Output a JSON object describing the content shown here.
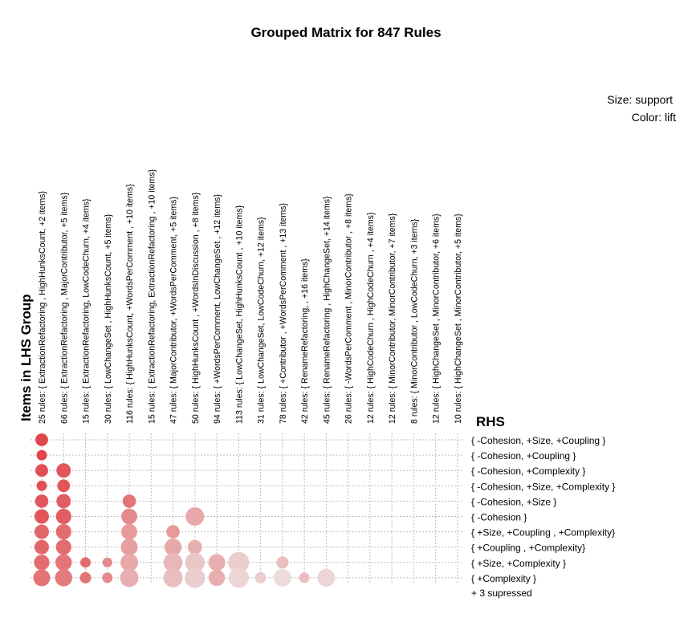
{
  "chart_data": {
    "type": "scatter",
    "title": "Grouped Matrix for 847 Rules",
    "legend": {
      "size": "Size: support",
      "color": "Color: lift",
      "placement": "top-right"
    },
    "xlabel": "Items in LHS Group",
    "ylabel": "RHS",
    "lhs_groups": [
      "25 rules: { ExtractionRefactoring ,  HighHunksCount, +2 items}",
      "66 rules: { ExtractionRefactoring ,  MajorContributor, +5 items}",
      "15 rules: { ExtractionRefactoring,  LowCodeChurn, +4 items}",
      "30 rules: { LowChangeSet ,  HighHunksCount, +5 items}",
      "116 rules: { HighHunksCount,  +WordsPerComment , +10 items}",
      "15 rules: { ExtractionRefactoring,  ExtractionRefactoring , +10 items}",
      "47 rules: { MajorContributor,  +WordsPerComment, +5 items}",
      "50 rules: { HighHunksCount ,  +WordsInDiscussion , +8 items}",
      "94 rules: { +WordsPerComment,  LowChangeSet , +12 items}",
      "113 rules: { LowChangeSet,  HighHunksCount , +10 items}",
      "31 rules: { LowChangeSet,  LowCodeChurn, +12 items}",
      "78 rules: { +Contributor ,  +WordsPerComment , +13 items}",
      "42 rules: { RenameRefactoring,  , +16 items}",
      "45 rules: { RenameRefactoring ,  HighChangeSet, +14 items}",
      "26 rules: { -WordsPerComment ,  MinorContributor , +8 items}",
      "12 rules: { HighCodeChurn ,  HighCodeChurn , +4 items}",
      "12 rules: { MinorContributor,  MinorContributor, +7 items}",
      "8 rules: { MinorContributor ,  LowCodeChurn, +3 items}",
      "12 rules: { HighChangeSet ,  MinorContributor, +6 items}",
      "10 rules: { HighChangeSet ,  MinorContributor, +5 items}"
    ],
    "rhs_items": [
      "{ -Cohesion, +Size, +Coupling }",
      "{ -Cohesion, +Coupling }",
      "{ -Cohesion, +Complexity }",
      "{ -Cohesion, +Size, +Complexity }",
      "{ -Cohesion, +Size }",
      "{ -Cohesion }",
      "{ +Size, +Coupling , +Complexity}",
      "{ +Coupling , +Complexity}",
      "{ +Size, +Complexity }",
      "{ +Complexity }"
    ],
    "suppressed_label": "+ 3 supressed",
    "size_encoding": "support",
    "color_encoding": "lift",
    "color_scale": {
      "high": "#e0474c",
      "low": "#ecdcdc"
    },
    "grid": true,
    "points": [
      {
        "x": 0,
        "y": 0,
        "support": 0.3,
        "lift": 1.0
      },
      {
        "x": 0,
        "y": 1,
        "support": 0.15,
        "lift": 1.0
      },
      {
        "x": 0,
        "y": 2,
        "support": 0.3,
        "lift": 0.95
      },
      {
        "x": 0,
        "y": 3,
        "support": 0.15,
        "lift": 0.95
      },
      {
        "x": 0,
        "y": 4,
        "support": 0.35,
        "lift": 0.9
      },
      {
        "x": 0,
        "y": 5,
        "support": 0.45,
        "lift": 0.9
      },
      {
        "x": 0,
        "y": 6,
        "support": 0.45,
        "lift": 0.8
      },
      {
        "x": 0,
        "y": 7,
        "support": 0.45,
        "lift": 0.8
      },
      {
        "x": 0,
        "y": 8,
        "support": 0.55,
        "lift": 0.75
      },
      {
        "x": 0,
        "y": 9,
        "support": 0.7,
        "lift": 0.7
      },
      {
        "x": 1,
        "y": 2,
        "support": 0.45,
        "lift": 0.9
      },
      {
        "x": 1,
        "y": 3,
        "support": 0.3,
        "lift": 0.9
      },
      {
        "x": 1,
        "y": 4,
        "support": 0.45,
        "lift": 0.85
      },
      {
        "x": 1,
        "y": 5,
        "support": 0.55,
        "lift": 0.85
      },
      {
        "x": 1,
        "y": 6,
        "support": 0.55,
        "lift": 0.75
      },
      {
        "x": 1,
        "y": 7,
        "support": 0.55,
        "lift": 0.75
      },
      {
        "x": 1,
        "y": 8,
        "support": 0.65,
        "lift": 0.7
      },
      {
        "x": 1,
        "y": 9,
        "support": 0.75,
        "lift": 0.65
      },
      {
        "x": 2,
        "y": 8,
        "support": 0.15,
        "lift": 0.75
      },
      {
        "x": 2,
        "y": 9,
        "support": 0.2,
        "lift": 0.7
      },
      {
        "x": 3,
        "y": 8,
        "support": 0.12,
        "lift": 0.55
      },
      {
        "x": 3,
        "y": 9,
        "support": 0.15,
        "lift": 0.55
      },
      {
        "x": 4,
        "y": 4,
        "support": 0.35,
        "lift": 0.7
      },
      {
        "x": 4,
        "y": 5,
        "support": 0.6,
        "lift": 0.55
      },
      {
        "x": 4,
        "y": 6,
        "support": 0.6,
        "lift": 0.45
      },
      {
        "x": 4,
        "y": 7,
        "support": 0.7,
        "lift": 0.4
      },
      {
        "x": 4,
        "y": 8,
        "support": 0.8,
        "lift": 0.35
      },
      {
        "x": 4,
        "y": 9,
        "support": 0.9,
        "lift": 0.3
      },
      {
        "x": 6,
        "y": 6,
        "support": 0.35,
        "lift": 0.45
      },
      {
        "x": 6,
        "y": 7,
        "support": 0.75,
        "lift": 0.35
      },
      {
        "x": 6,
        "y": 8,
        "support": 0.95,
        "lift": 0.25
      },
      {
        "x": 6,
        "y": 9,
        "support": 1.0,
        "lift": 0.2
      },
      {
        "x": 7,
        "y": 5,
        "support": 0.9,
        "lift": 0.35
      },
      {
        "x": 7,
        "y": 7,
        "support": 0.45,
        "lift": 0.3
      },
      {
        "x": 7,
        "y": 8,
        "support": 1.05,
        "lift": 0.15
      },
      {
        "x": 7,
        "y": 9,
        "support": 1.15,
        "lift": 0.1
      },
      {
        "x": 8,
        "y": 8,
        "support": 0.7,
        "lift": 0.3
      },
      {
        "x": 8,
        "y": 9,
        "support": 0.65,
        "lift": 0.3
      },
      {
        "x": 9,
        "y": 8,
        "support": 1.25,
        "lift": 0.1
      },
      {
        "x": 9,
        "y": 9,
        "support": 1.15,
        "lift": 0.05
      },
      {
        "x": 10,
        "y": 9,
        "support": 0.2,
        "lift": 0.1
      },
      {
        "x": 11,
        "y": 8,
        "support": 0.25,
        "lift": 0.2
      },
      {
        "x": 11,
        "y": 9,
        "support": 0.8,
        "lift": 0.0
      },
      {
        "x": 12,
        "y": 9,
        "support": 0.15,
        "lift": 0.2
      },
      {
        "x": 13,
        "y": 9,
        "support": 0.8,
        "lift": 0.05
      }
    ]
  }
}
